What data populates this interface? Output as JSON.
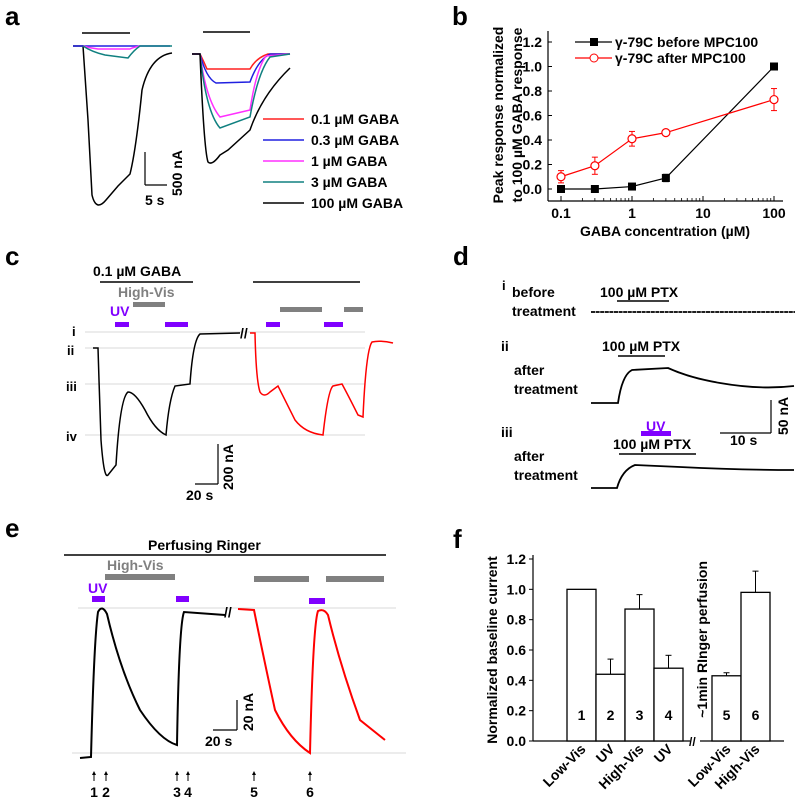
{
  "panels": {
    "a": {
      "label": "a",
      "scale_x": "5 s",
      "scale_y": "500 nA",
      "legend": [
        {
          "label": "0.1 µM GABA",
          "color": "#ff2020"
        },
        {
          "label": "0.3 µM GABA",
          "color": "#2020e0"
        },
        {
          "label": "1 µM GABA",
          "color": "#ff30ff"
        },
        {
          "label": "3 µM GABA",
          "color": "#108080"
        },
        {
          "label": "100 µM GABA",
          "color": "#000000"
        }
      ]
    },
    "b": {
      "label": "b"
    },
    "c": {
      "label": "c",
      "gaba_label": "0.1 µM GABA",
      "highvis_label": "High-Vis",
      "uv_label": "UV",
      "levels": [
        "i",
        "ii",
        "iii",
        "iv"
      ],
      "scale_x": "20 s",
      "scale_y": "200 nA"
    },
    "d": {
      "label": "d",
      "rows": [
        {
          "roman": "i",
          "cond1": "before",
          "cond2": "treatment",
          "drug": "100 µM PTX"
        },
        {
          "roman": "ii",
          "cond1": "after",
          "cond2": "treatment",
          "drug": "100 µM PTX"
        },
        {
          "roman": "iii",
          "cond1": "after",
          "cond2": "treatment",
          "drug": "100 µM PTX",
          "uv": "UV"
        }
      ],
      "scale_x": "10 s",
      "scale_y": "50 nA"
    },
    "e": {
      "label": "e",
      "ringer_label": "Perfusing Ringer",
      "highvis_label": "High-Vis",
      "uv_label": "UV",
      "scale_x": "20 s",
      "scale_y": "20 nA",
      "markers": [
        "1",
        "2",
        "3",
        "4",
        "5",
        "6"
      ]
    },
    "f": {
      "label": "f"
    }
  },
  "colors": {
    "uv": "#8000ff",
    "highvis": "#808080",
    "after": "#ff0000"
  },
  "chart_data": [
    {
      "panel": "b",
      "type": "line",
      "title": "",
      "xlabel": "GABA concentration (µM)",
      "ylabel": "Peak response normalized to 100 µM GABA response",
      "xscale": "log",
      "x": [
        0.1,
        0.3,
        1,
        3,
        100
      ],
      "xticks": [
        "0.1",
        "1",
        "10",
        "100"
      ],
      "xtick_values": [
        0.1,
        1,
        10,
        100
      ],
      "yticks": [
        "0.0",
        "0.2",
        "0.4",
        "0.6",
        "0.8",
        "1.0",
        "1.2"
      ],
      "ylim": [
        -0.05,
        1.3
      ],
      "legend_position": "top-left",
      "series": [
        {
          "name": "γ-79C before MPC100",
          "color": "#000000",
          "marker": "filled-square",
          "values": [
            0.0,
            0.0,
            0.02,
            0.09,
            1.0
          ],
          "errors": [
            0.01,
            0.01,
            0.01,
            0.03,
            0.0
          ]
        },
        {
          "name": "γ-79C after MPC100",
          "color": "#ff0000",
          "marker": "open-circle",
          "values": [
            0.1,
            0.19,
            0.41,
            0.46,
            0.73
          ],
          "errors": [
            0.05,
            0.07,
            0.06,
            0.02,
            0.09
          ]
        }
      ]
    },
    {
      "panel": "f",
      "type": "bar",
      "ylabel": "Normalized baseline current",
      "annotation": "~1min RInger perfusion",
      "categories": [
        "Low-Vis",
        "UV",
        "High-Vis",
        "UV",
        "Low-Vis",
        "High-Vis"
      ],
      "bar_numbers": [
        "1",
        "2",
        "3",
        "4",
        "5",
        "6"
      ],
      "values": [
        1.0,
        0.44,
        0.87,
        0.48,
        0.43,
        0.98
      ],
      "errors": [
        0.0,
        0.1,
        0.095,
        0.085,
        0.02,
        0.14
      ],
      "yticks": [
        "0.0",
        "0.2",
        "0.4",
        "0.6",
        "0.8",
        "1.0",
        "1.2"
      ],
      "ylim": [
        0,
        1.2
      ]
    }
  ]
}
